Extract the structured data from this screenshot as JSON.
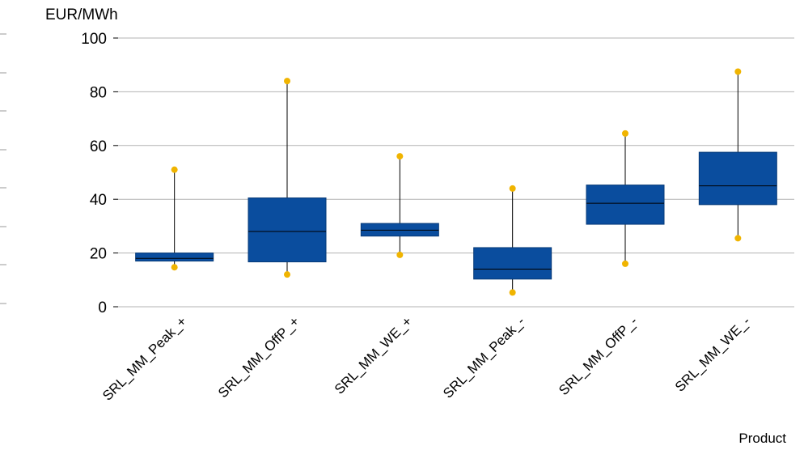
{
  "chart_data": {
    "type": "box",
    "ylabel": "EUR/MWh",
    "xlabel": "Product",
    "ylim": [
      0,
      100
    ],
    "yticks": [
      "0",
      "20",
      "40",
      "60",
      "80",
      "100"
    ],
    "grid": true,
    "colors": {
      "box": "#0a4d9e",
      "box_edge": "#063a78",
      "outlier": "#f0b400",
      "grid": "#b3b3b3"
    },
    "categories": [
      "SRL_MM_Peak_+",
      "SRL_MM_OffP_+",
      "SRL_MM_WE_+",
      "SRL_MM_Peak_-",
      "SRL_MM_OffP_-",
      "SRL_MM_WE_-"
    ],
    "boxes": [
      {
        "min": 14.7,
        "q1": 17,
        "median": 18,
        "q3": 20,
        "max": 51
      },
      {
        "min": 12,
        "q1": 16.7,
        "median": 28,
        "q3": 40.5,
        "max": 84
      },
      {
        "min": 19.3,
        "q1": 26.3,
        "median": 28.5,
        "q3": 31,
        "max": 56
      },
      {
        "min": 5.3,
        "q1": 10.3,
        "median": 14,
        "q3": 22,
        "max": 44
      },
      {
        "min": 16,
        "q1": 30.7,
        "median": 38.5,
        "q3": 45.3,
        "max": 64.5
      },
      {
        "min": 25.5,
        "q1": 38,
        "median": 45,
        "q3": 57.5,
        "max": 87.5
      }
    ]
  }
}
